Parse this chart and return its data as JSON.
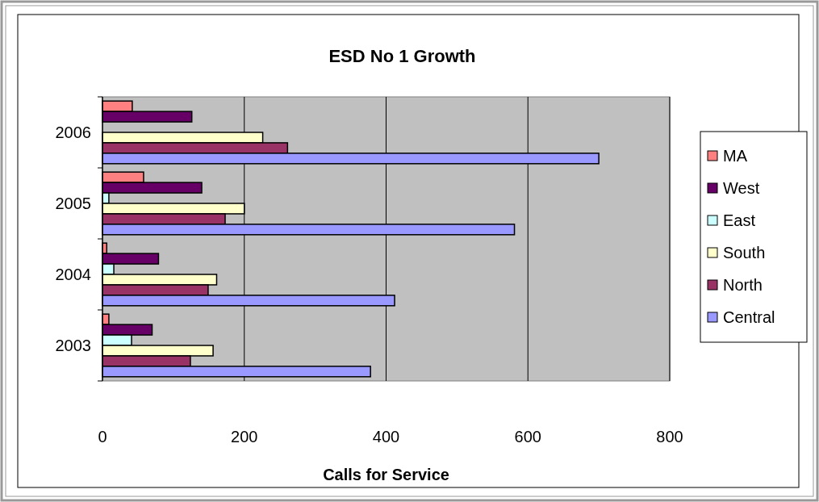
{
  "chart_data": {
    "type": "bar",
    "orientation": "horizontal",
    "title": "ESD No 1 Growth",
    "xlabel": "Calls for Service",
    "categories": [
      "2006",
      "2005",
      "2004",
      "2003"
    ],
    "series": [
      {
        "name": "MA",
        "color": "#ff8080",
        "values": [
          42,
          58,
          6,
          9
        ]
      },
      {
        "name": "West",
        "color": "#660066",
        "values": [
          126,
          140,
          79,
          70
        ]
      },
      {
        "name": "East",
        "color": "#ccffff",
        "values": [
          null,
          9,
          16,
          41
        ]
      },
      {
        "name": "South",
        "color": "#ffffcc",
        "values": [
          226,
          200,
          161,
          156
        ]
      },
      {
        "name": "North",
        "color": "#993366",
        "values": [
          261,
          173,
          149,
          124
        ]
      },
      {
        "name": "Central",
        "color": "#9999ff",
        "values": [
          700,
          581,
          412,
          378
        ]
      }
    ],
    "xlim": [
      0,
      800
    ],
    "xticks": [
      0,
      200,
      400,
      600,
      800
    ],
    "grid": "x",
    "legend": "right"
  }
}
